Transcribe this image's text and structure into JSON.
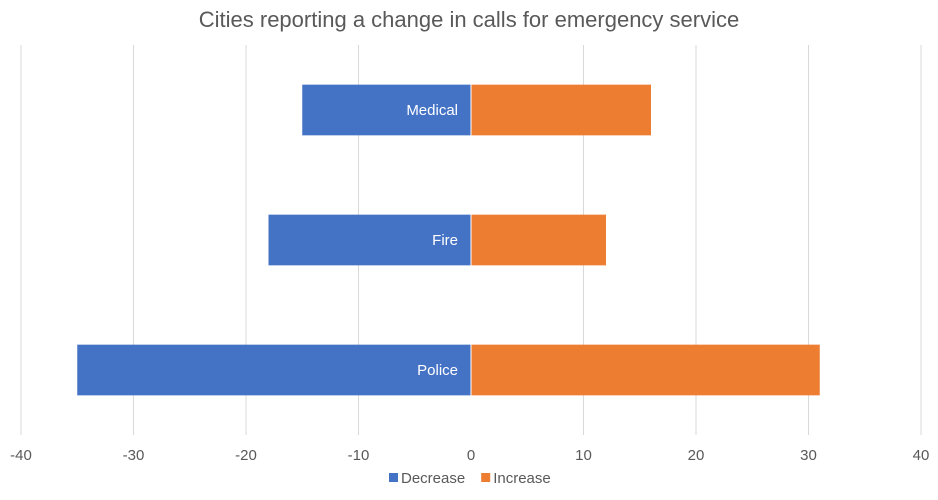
{
  "chart_data": {
    "type": "bar",
    "orientation": "horizontal",
    "title": "Cities reporting a change in calls for emergency service",
    "categories": [
      "Medical",
      "Fire",
      "Police"
    ],
    "series": [
      {
        "name": "Decrease",
        "color": "#4472c4",
        "values": [
          -15,
          -18,
          -35
        ]
      },
      {
        "name": "Increase",
        "color": "#ed7d31",
        "values": [
          16,
          12,
          31
        ]
      }
    ],
    "xlim": [
      -40,
      40
    ],
    "xticks": [
      -40,
      -30,
      -20,
      -10,
      0,
      10,
      20,
      30,
      40
    ],
    "xtick_labels": [
      "-40",
      "-30",
      "-20",
      "-10",
      "0",
      "10",
      "20",
      "30",
      "40"
    ],
    "xlabel": "",
    "ylabel": "",
    "grid": true,
    "legend": "bottom"
  }
}
